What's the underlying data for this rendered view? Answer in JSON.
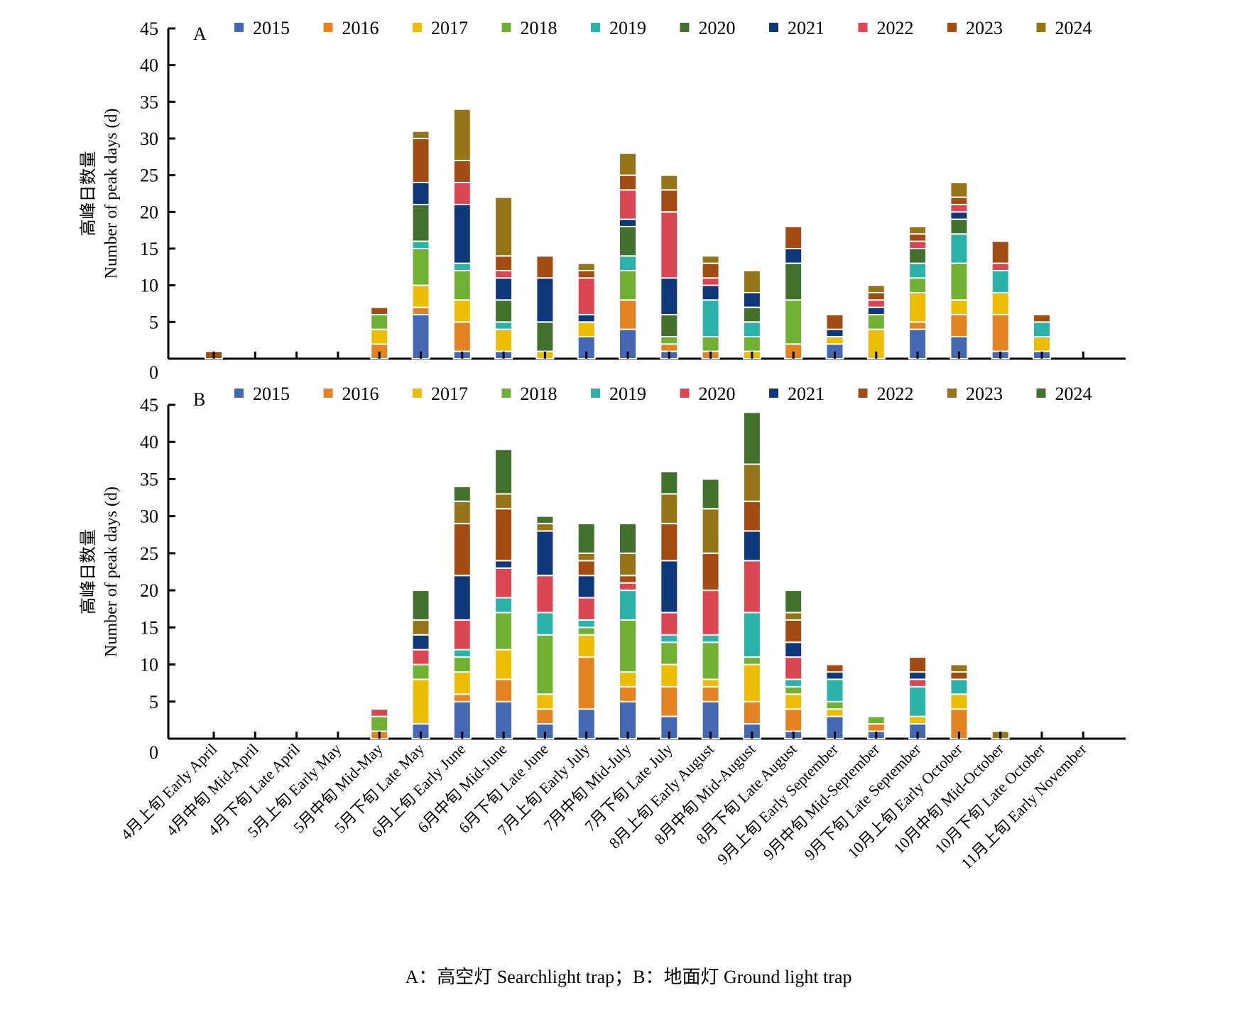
{
  "chart_data": [
    {
      "type": "bar",
      "stacked": true,
      "panel": "A",
      "ylabel_cn": "高峰日数量",
      "ylabel": "Number of peak days (d)",
      "ylim": [
        0,
        45
      ],
      "yticks": [
        0,
        5,
        10,
        15,
        20,
        25,
        30,
        35,
        40,
        45
      ],
      "legend_placement": "top",
      "categories": [
        "4月上旬 Early April",
        "4月中旬 Mid-April",
        "4月下旬 Late April",
        "5月上旬 Early May",
        "5月中旬 Mid-May",
        "5月下旬 Late May",
        "6月上旬 Early June",
        "6月中旬 Mid-June",
        "6月下旬 Late June",
        "7月上旬 Early July",
        "7月中旬 Mid-July",
        "7月下旬 Late July",
        "8月上旬 Early August",
        "8月中旬 Mid-August",
        "8月下旬 Late August",
        "9月上旬 Early September",
        "9月中旬 Mid-September",
        "9月下旬 Late September",
        "10月上旬 Early October",
        "10月中旬 Mid-October",
        "10月下旬 Late October",
        "11月上旬 Early November"
      ],
      "series": [
        {
          "name": "2015",
          "color": "#4469b2",
          "values": [
            0,
            0,
            0,
            0,
            0,
            6,
            1,
            1,
            0,
            3,
            4,
            1,
            0,
            0,
            0,
            2,
            0,
            4,
            3,
            1,
            1,
            0
          ]
        },
        {
          "name": "2016",
          "color": "#e38322",
          "values": [
            0,
            0,
            0,
            0,
            2,
            1,
            4,
            0,
            0,
            0,
            4,
            1,
            1,
            0,
            2,
            0,
            0,
            1,
            3,
            5,
            0,
            0
          ]
        },
        {
          "name": "2017",
          "color": "#ecbd02",
          "values": [
            0,
            0,
            0,
            0,
            2,
            3,
            3,
            3,
            1,
            2,
            0,
            0,
            0,
            1,
            0,
            1,
            4,
            4,
            2,
            3,
            2,
            0
          ]
        },
        {
          "name": "2018",
          "color": "#70b134",
          "values": [
            0,
            0,
            0,
            0,
            2,
            5,
            4,
            0,
            0,
            0,
            4,
            1,
            2,
            2,
            6,
            0,
            2,
            2,
            5,
            0,
            0,
            0
          ]
        },
        {
          "name": "2019",
          "color": "#2bb3aa",
          "values": [
            0,
            0,
            0,
            0,
            0,
            1,
            1,
            1,
            0,
            0,
            2,
            0,
            5,
            2,
            0,
            0,
            0,
            2,
            4,
            3,
            2,
            0
          ]
        },
        {
          "name": "2020",
          "color": "#41712c",
          "values": [
            0,
            0,
            0,
            0,
            0,
            5,
            0,
            3,
            4,
            0,
            4,
            3,
            0,
            2,
            5,
            0,
            0,
            2,
            2,
            0,
            0,
            0
          ]
        },
        {
          "name": "2021",
          "color": "#0f387a",
          "values": [
            0,
            0,
            0,
            0,
            0,
            3,
            8,
            3,
            6,
            1,
            1,
            5,
            2,
            2,
            2,
            1,
            1,
            0,
            1,
            0,
            0,
            0
          ]
        },
        {
          "name": "2022",
          "color": "#da4753",
          "values": [
            0,
            0,
            0,
            0,
            0,
            0,
            3,
            1,
            0,
            5,
            4,
            9,
            1,
            0,
            0,
            0,
            1,
            1,
            1,
            1,
            0,
            0
          ]
        },
        {
          "name": "2023",
          "color": "#a24c14",
          "values": [
            1,
            0,
            0,
            0,
            1,
            6,
            3,
            2,
            3,
            1,
            2,
            3,
            2,
            0,
            3,
            2,
            1,
            1,
            1,
            3,
            1,
            0
          ]
        },
        {
          "name": "2024",
          "color": "#957517",
          "values": [
            0,
            0,
            0,
            0,
            0,
            1,
            7,
            8,
            0,
            1,
            3,
            2,
            1,
            3,
            0,
            0,
            1,
            1,
            2,
            0,
            0,
            0
          ]
        }
      ]
    },
    {
      "type": "bar",
      "stacked": true,
      "panel": "B",
      "ylabel_cn": "高峰日数量",
      "ylabel": "Number of peak days (d)",
      "ylim": [
        0,
        45
      ],
      "yticks": [
        0,
        5,
        10,
        15,
        20,
        25,
        30,
        35,
        40,
        45
      ],
      "legend_placement": "top",
      "categories": [
        "4月上旬 Early April",
        "4月中旬 Mid-April",
        "4月下旬 Late April",
        "5月上旬 Early May",
        "5月中旬 Mid-May",
        "5月下旬 Late May",
        "6月上旬 Early June",
        "6月中旬 Mid-June",
        "6月下旬 Late June",
        "7月上旬 Early July",
        "7月中旬 Mid-July",
        "7月下旬 Late July",
        "8月上旬 Early August",
        "8月中旬 Mid-August",
        "8月下旬 Late August",
        "9月上旬 Early September",
        "9月中旬 Mid-September",
        "9月下旬 Late September",
        "10月上旬 Early October",
        "10月中旬 Mid-October",
        "10月下旬 Late October",
        "11月上旬 Early November"
      ],
      "series": [
        {
          "name": "2015",
          "color": "#4469b2",
          "values": [
            0,
            0,
            0,
            0,
            0,
            2,
            5,
            5,
            2,
            4,
            5,
            3,
            5,
            2,
            1,
            3,
            1,
            2,
            0,
            0,
            0,
            0
          ]
        },
        {
          "name": "2016",
          "color": "#e38322",
          "values": [
            0,
            0,
            0,
            0,
            1,
            0,
            1,
            3,
            2,
            7,
            2,
            4,
            2,
            3,
            3,
            0,
            1,
            0,
            4,
            0,
            0,
            0
          ]
        },
        {
          "name": "2017",
          "color": "#ecbd02",
          "values": [
            0,
            0,
            0,
            0,
            0,
            6,
            3,
            4,
            2,
            3,
            2,
            3,
            1,
            5,
            2,
            1,
            0,
            1,
            2,
            0,
            0,
            0
          ]
        },
        {
          "name": "2018",
          "color": "#70b134",
          "values": [
            0,
            0,
            0,
            0,
            2,
            2,
            2,
            5,
            8,
            1,
            7,
            3,
            5,
            1,
            1,
            1,
            1,
            0,
            0,
            0,
            0,
            0
          ]
        },
        {
          "name": "2019",
          "color": "#2bb3aa",
          "values": [
            0,
            0,
            0,
            0,
            0,
            0,
            1,
            2,
            3,
            1,
            4,
            1,
            1,
            6,
            1,
            3,
            0,
            4,
            2,
            0,
            0,
            0
          ]
        },
        {
          "name": "2020",
          "color": "#da4753",
          "values": [
            0,
            0,
            0,
            0,
            1,
            2,
            4,
            4,
            5,
            3,
            1,
            3,
            6,
            7,
            3,
            0,
            0,
            1,
            0,
            0,
            0,
            0
          ]
        },
        {
          "name": "2021",
          "color": "#0f387a",
          "values": [
            0,
            0,
            0,
            0,
            0,
            2,
            6,
            1,
            6,
            3,
            0,
            7,
            0,
            4,
            2,
            1,
            0,
            1,
            0,
            0,
            0,
            0
          ]
        },
        {
          "name": "2022",
          "color": "#a24c14",
          "values": [
            0,
            0,
            0,
            0,
            0,
            0,
            7,
            7,
            0,
            2,
            1,
            5,
            5,
            4,
            3,
            1,
            0,
            2,
            1,
            0,
            0,
            0
          ]
        },
        {
          "name": "2023",
          "color": "#957517",
          "values": [
            0,
            0,
            0,
            0,
            0,
            2,
            3,
            2,
            1,
            1,
            3,
            4,
            6,
            5,
            1,
            0,
            0,
            0,
            1,
            1,
            0,
            0
          ]
        },
        {
          "name": "2024",
          "color": "#41712c",
          "values": [
            0,
            0,
            0,
            0,
            0,
            4,
            2,
            6,
            1,
            4,
            4,
            3,
            4,
            7,
            3,
            0,
            0,
            0,
            0,
            0,
            0,
            0
          ]
        }
      ]
    }
  ],
  "caption": "A：高空灯 Searchlight trap；B：地面灯 Ground light trap"
}
